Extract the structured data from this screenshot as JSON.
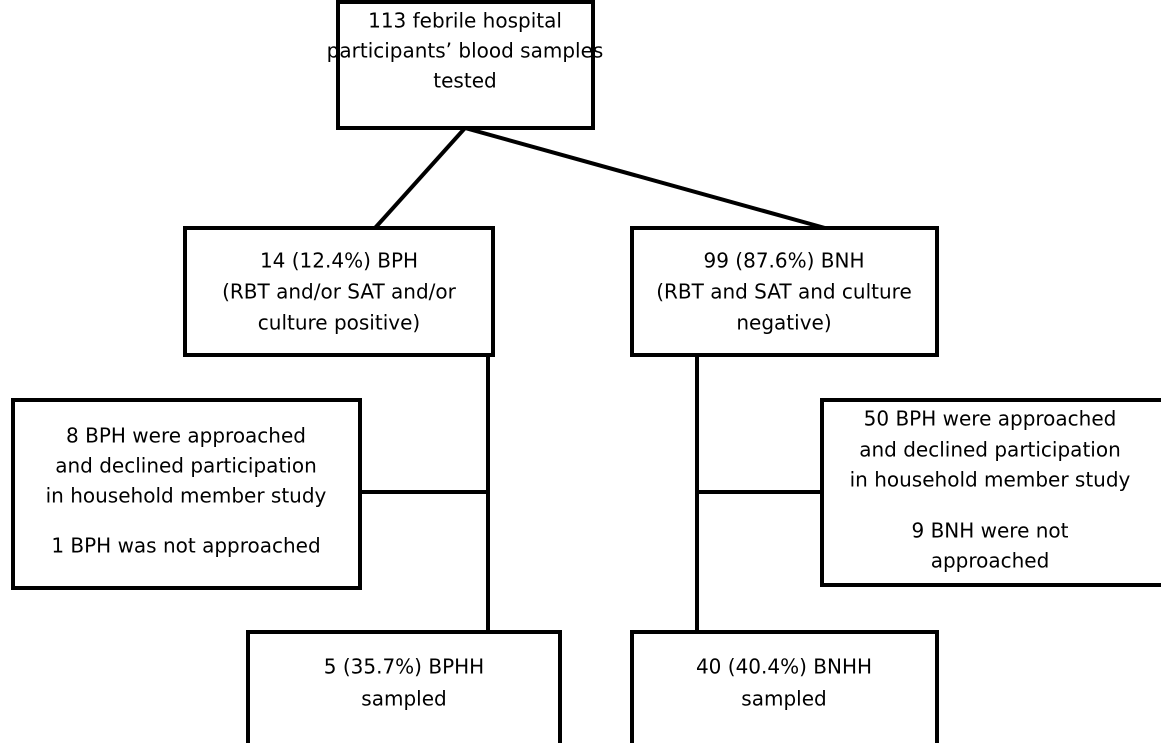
{
  "nodes": [
    {
      "lines": [
        "113 febrile hospital",
        "participants’ blood samples",
        "tested"
      ]
    },
    {
      "lines": [
        "14 (12.4%) BPH",
        "(RBT and/or SAT and/or",
        "culture positive)"
      ]
    },
    {
      "lines": [
        "99 (87.6%) BNH",
        "(RBT and SAT and culture",
        "negative)"
      ]
    },
    {
      "lines": [
        "8 BPH were approached",
        "and declined participation",
        "in household  member study",
        "1 BPH was not approached"
      ]
    },
    {
      "lines": [
        "50 BPH were approached",
        "and declined participation",
        "in household  member study",
        "9 BNH were not",
        "approached"
      ]
    },
    {
      "lines": [
        "5 (35.7%) BPHH",
        "sampled"
      ]
    },
    {
      "lines": [
        "40 (40.4%) BNHH",
        "sampled"
      ]
    }
  ]
}
